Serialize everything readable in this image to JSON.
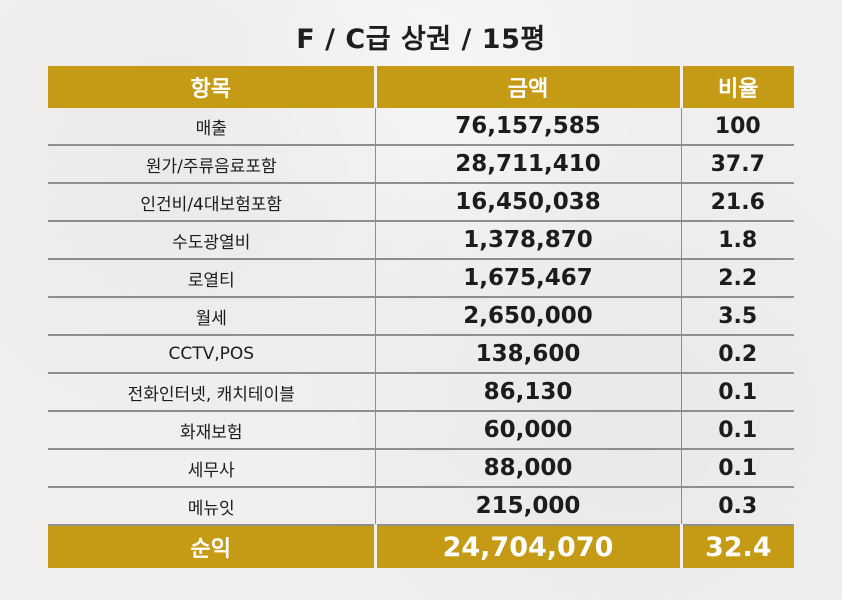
{
  "title": "F / C급 상권 / 15평",
  "table": {
    "headers": [
      "항목",
      "금액",
      "비율"
    ],
    "rows": [
      {
        "item": "매출",
        "amount": "76,157,585",
        "ratio": "100"
      },
      {
        "item": "원가/주류음료포함",
        "amount": "28,711,410",
        "ratio": "37.7"
      },
      {
        "item": "인건비/4대보험포함",
        "amount": "16,450,038",
        "ratio": "21.6"
      },
      {
        "item": "수도광열비",
        "amount": "1,378,870",
        "ratio": "1.8"
      },
      {
        "item": "로열티",
        "amount": "1,675,467",
        "ratio": "2.2"
      },
      {
        "item": "월세",
        "amount": "2,650,000",
        "ratio": "3.5"
      },
      {
        "item": "CCTV,POS",
        "amount": "138,600",
        "ratio": "0.2"
      },
      {
        "item": "전화인터넷, 캐치테이블",
        "amount": "86,130",
        "ratio": "0.1"
      },
      {
        "item": "화재보험",
        "amount": "60,000",
        "ratio": "0.1"
      },
      {
        "item": "세무사",
        "amount": "88,000",
        "ratio": "0.1"
      },
      {
        "item": "메뉴잇",
        "amount": "215,000",
        "ratio": "0.3"
      }
    ],
    "total": {
      "item": "순익",
      "amount": "24,704,070",
      "ratio": "32.4"
    }
  },
  "colors": {
    "header_bg": "#c59a15",
    "header_text": "#ffffff",
    "background": "#f1f0ee",
    "row_line": "#8e8e8e",
    "text": "#1c1c1c"
  }
}
